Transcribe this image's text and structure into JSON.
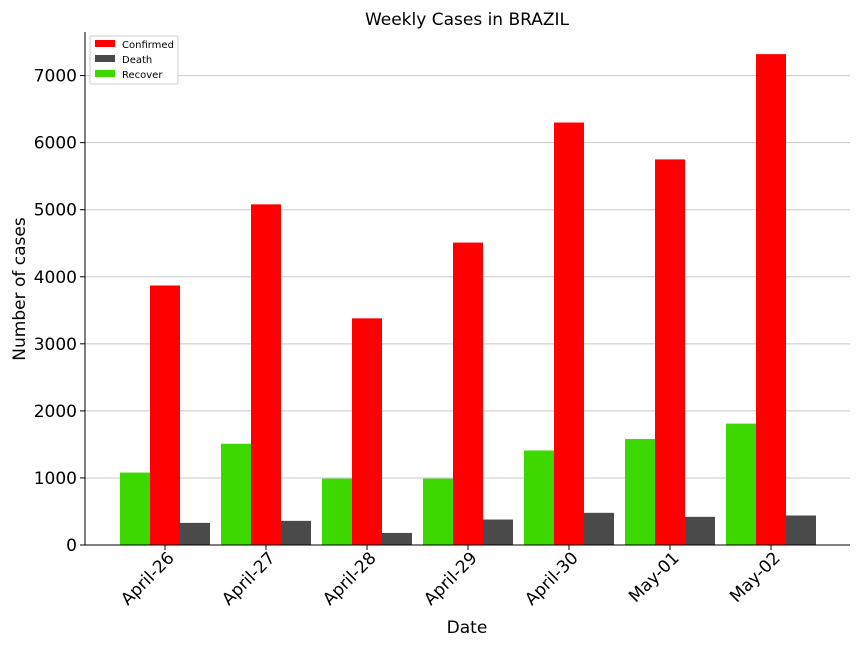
{
  "chart_data": {
    "type": "bar",
    "title": "Weekly Cases in BRAZIL",
    "xlabel": "Date",
    "ylabel": "Number of cases",
    "categories": [
      "April-26",
      "April-27",
      "April-28",
      "April-29",
      "April-30",
      "May-01",
      "May-02"
    ],
    "series": [
      {
        "name": "Recover",
        "color": "#3cd800",
        "values": [
          1080,
          1510,
          990,
          990,
          1410,
          1580,
          1810
        ]
      },
      {
        "name": "Confirmed",
        "color": "#ff0000",
        "values": [
          3870,
          5080,
          3380,
          4510,
          6300,
          5750,
          7320
        ]
      },
      {
        "name": "Death",
        "color": "#4a4a4a",
        "values": [
          330,
          360,
          180,
          380,
          480,
          420,
          440
        ]
      }
    ],
    "legend_order": [
      "Confirmed",
      "Death",
      "Recover"
    ],
    "legend_position": "top-left",
    "ylim": [
      0,
      7650
    ],
    "yticks": [
      0,
      1000,
      2000,
      3000,
      4000,
      5000,
      6000,
      7000
    ],
    "grid": "horizontal"
  }
}
